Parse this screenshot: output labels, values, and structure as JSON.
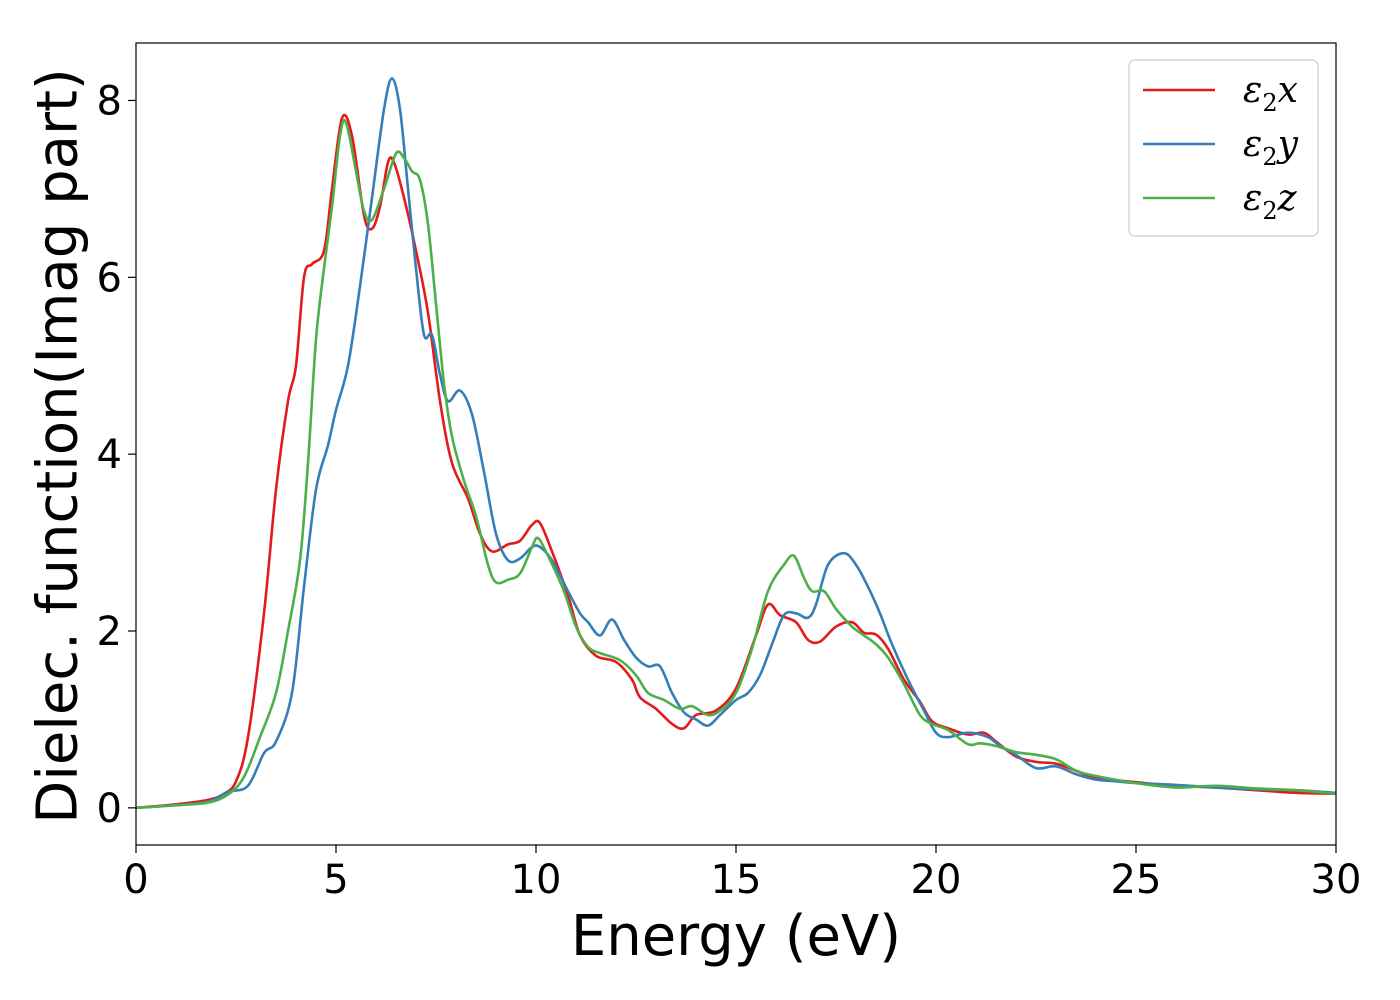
{
  "chart_data": {
    "type": "line",
    "xlabel": "Energy (eV)",
    "ylabel": "Dielec. function(Imag part)",
    "xlim": [
      0,
      30
    ],
    "ylim": [
      -0.42,
      8.65
    ],
    "xticks": [
      "0",
      "5",
      "10",
      "15",
      "20",
      "25",
      "30"
    ],
    "yticks": [
      "0",
      "2",
      "4",
      "6",
      "8"
    ],
    "grid": false,
    "legend_position": "top-right",
    "series": [
      {
        "name": "ε₂x",
        "legend_base": "ε",
        "legend_sub": "2",
        "legend_tail": "x",
        "color": "#e41a1c",
        "points": [
          [
            0,
            0
          ],
          [
            1,
            0.04
          ],
          [
            1.8,
            0.09
          ],
          [
            2.2,
            0.16
          ],
          [
            2.5,
            0.3
          ],
          [
            2.8,
            0.8
          ],
          [
            3.2,
            2.2
          ],
          [
            3.5,
            3.6
          ],
          [
            3.8,
            4.6
          ],
          [
            4.0,
            5.0
          ],
          [
            4.2,
            6.0
          ],
          [
            4.4,
            6.15
          ],
          [
            4.7,
            6.3
          ],
          [
            4.9,
            7.0
          ],
          [
            5.15,
            7.8
          ],
          [
            5.4,
            7.6
          ],
          [
            5.7,
            6.7
          ],
          [
            5.9,
            6.55
          ],
          [
            6.1,
            6.8
          ],
          [
            6.3,
            7.3
          ],
          [
            6.45,
            7.3
          ],
          [
            6.7,
            6.9
          ],
          [
            7.0,
            6.3
          ],
          [
            7.3,
            5.6
          ],
          [
            7.6,
            4.6
          ],
          [
            7.9,
            3.9
          ],
          [
            8.3,
            3.5
          ],
          [
            8.6,
            3.1
          ],
          [
            8.9,
            2.9
          ],
          [
            9.3,
            2.98
          ],
          [
            9.6,
            3.02
          ],
          [
            9.9,
            3.2
          ],
          [
            10.1,
            3.22
          ],
          [
            10.4,
            2.9
          ],
          [
            10.8,
            2.4
          ],
          [
            11.1,
            1.95
          ],
          [
            11.5,
            1.72
          ],
          [
            12.0,
            1.65
          ],
          [
            12.4,
            1.45
          ],
          [
            12.6,
            1.25
          ],
          [
            13.0,
            1.12
          ],
          [
            13.4,
            0.95
          ],
          [
            13.7,
            0.9
          ],
          [
            14.0,
            1.05
          ],
          [
            14.5,
            1.1
          ],
          [
            15.0,
            1.35
          ],
          [
            15.5,
            1.95
          ],
          [
            15.8,
            2.3
          ],
          [
            16.1,
            2.18
          ],
          [
            16.5,
            2.1
          ],
          [
            16.8,
            1.9
          ],
          [
            17.1,
            1.88
          ],
          [
            17.5,
            2.05
          ],
          [
            17.9,
            2.1
          ],
          [
            18.2,
            1.98
          ],
          [
            18.5,
            1.96
          ],
          [
            18.8,
            1.8
          ],
          [
            19.2,
            1.45
          ],
          [
            19.6,
            1.2
          ],
          [
            19.9,
            0.98
          ],
          [
            20.3,
            0.9
          ],
          [
            20.8,
            0.83
          ],
          [
            21.2,
            0.85
          ],
          [
            21.5,
            0.75
          ],
          [
            22.0,
            0.58
          ],
          [
            22.5,
            0.52
          ],
          [
            23.0,
            0.5
          ],
          [
            23.5,
            0.42
          ],
          [
            24.0,
            0.34
          ],
          [
            25.0,
            0.29
          ],
          [
            26.0,
            0.25
          ],
          [
            27.0,
            0.23
          ],
          [
            28.0,
            0.2
          ],
          [
            29.0,
            0.17
          ],
          [
            30.0,
            0.16
          ]
        ]
      },
      {
        "name": "ε₂y",
        "legend_base": "ε",
        "legend_sub": "2",
        "legend_tail": "y",
        "color": "#377eb8",
        "points": [
          [
            0,
            0
          ],
          [
            1,
            0.03
          ],
          [
            1.8,
            0.07
          ],
          [
            2.3,
            0.18
          ],
          [
            2.8,
            0.25
          ],
          [
            3.2,
            0.62
          ],
          [
            3.5,
            0.75
          ],
          [
            3.9,
            1.3
          ],
          [
            4.2,
            2.5
          ],
          [
            4.5,
            3.6
          ],
          [
            4.8,
            4.1
          ],
          [
            5.0,
            4.5
          ],
          [
            5.3,
            5.0
          ],
          [
            5.6,
            5.9
          ],
          [
            5.9,
            6.9
          ],
          [
            6.2,
            7.9
          ],
          [
            6.4,
            8.25
          ],
          [
            6.6,
            7.9
          ],
          [
            6.8,
            7.0
          ],
          [
            7.0,
            6.1
          ],
          [
            7.2,
            5.35
          ],
          [
            7.4,
            5.35
          ],
          [
            7.6,
            4.9
          ],
          [
            7.8,
            4.6
          ],
          [
            8.1,
            4.72
          ],
          [
            8.4,
            4.45
          ],
          [
            8.7,
            3.8
          ],
          [
            9.0,
            3.1
          ],
          [
            9.3,
            2.8
          ],
          [
            9.6,
            2.82
          ],
          [
            9.9,
            2.95
          ],
          [
            10.1,
            2.95
          ],
          [
            10.4,
            2.8
          ],
          [
            10.8,
            2.45
          ],
          [
            11.1,
            2.2
          ],
          [
            11.3,
            2.1
          ],
          [
            11.6,
            1.95
          ],
          [
            11.9,
            2.13
          ],
          [
            12.2,
            1.9
          ],
          [
            12.5,
            1.7
          ],
          [
            12.8,
            1.6
          ],
          [
            13.1,
            1.6
          ],
          [
            13.4,
            1.3
          ],
          [
            13.7,
            1.08
          ],
          [
            14.0,
            1.0
          ],
          [
            14.3,
            0.93
          ],
          [
            14.6,
            1.05
          ],
          [
            15.0,
            1.22
          ],
          [
            15.3,
            1.3
          ],
          [
            15.6,
            1.5
          ],
          [
            15.9,
            1.85
          ],
          [
            16.2,
            2.18
          ],
          [
            16.5,
            2.2
          ],
          [
            16.8,
            2.15
          ],
          [
            17.0,
            2.3
          ],
          [
            17.3,
            2.75
          ],
          [
            17.7,
            2.88
          ],
          [
            18.0,
            2.75
          ],
          [
            18.3,
            2.5
          ],
          [
            18.6,
            2.2
          ],
          [
            18.9,
            1.85
          ],
          [
            19.3,
            1.45
          ],
          [
            19.7,
            1.1
          ],
          [
            20.0,
            0.85
          ],
          [
            20.3,
            0.8
          ],
          [
            20.8,
            0.85
          ],
          [
            21.3,
            0.8
          ],
          [
            21.6,
            0.7
          ],
          [
            22.0,
            0.6
          ],
          [
            22.5,
            0.45
          ],
          [
            23.0,
            0.47
          ],
          [
            23.5,
            0.38
          ],
          [
            24.0,
            0.32
          ],
          [
            24.5,
            0.3
          ],
          [
            25.0,
            0.28
          ],
          [
            26.0,
            0.26
          ],
          [
            27.0,
            0.23
          ],
          [
            28.0,
            0.21
          ],
          [
            29.0,
            0.2
          ],
          [
            30.0,
            0.17
          ]
        ]
      },
      {
        "name": "ε₂z",
        "legend_base": "ε",
        "legend_sub": "2",
        "legend_tail": "z",
        "color": "#4daf4a",
        "points": [
          [
            0,
            0
          ],
          [
            1,
            0.03
          ],
          [
            1.8,
            0.06
          ],
          [
            2.3,
            0.15
          ],
          [
            2.7,
            0.35
          ],
          [
            3.1,
            0.8
          ],
          [
            3.5,
            1.3
          ],
          [
            3.8,
            2.0
          ],
          [
            4.1,
            2.8
          ],
          [
            4.3,
            3.9
          ],
          [
            4.5,
            5.3
          ],
          [
            4.7,
            6.1
          ],
          [
            4.9,
            6.8
          ],
          [
            5.1,
            7.6
          ],
          [
            5.25,
            7.75
          ],
          [
            5.5,
            7.2
          ],
          [
            5.7,
            6.75
          ],
          [
            5.9,
            6.65
          ],
          [
            6.2,
            7.0
          ],
          [
            6.5,
            7.4
          ],
          [
            6.7,
            7.35
          ],
          [
            6.9,
            7.2
          ],
          [
            7.1,
            7.1
          ],
          [
            7.3,
            6.6
          ],
          [
            7.5,
            5.7
          ],
          [
            7.7,
            4.8
          ],
          [
            7.9,
            4.2
          ],
          [
            8.2,
            3.7
          ],
          [
            8.5,
            3.3
          ],
          [
            8.8,
            2.75
          ],
          [
            9.0,
            2.55
          ],
          [
            9.3,
            2.58
          ],
          [
            9.6,
            2.65
          ],
          [
            9.9,
            2.95
          ],
          [
            10.05,
            3.05
          ],
          [
            10.3,
            2.85
          ],
          [
            10.7,
            2.45
          ],
          [
            11.0,
            2.05
          ],
          [
            11.3,
            1.82
          ],
          [
            11.6,
            1.75
          ],
          [
            12.1,
            1.67
          ],
          [
            12.5,
            1.5
          ],
          [
            12.8,
            1.3
          ],
          [
            13.2,
            1.22
          ],
          [
            13.6,
            1.12
          ],
          [
            13.9,
            1.15
          ],
          [
            14.3,
            1.05
          ],
          [
            14.6,
            1.1
          ],
          [
            15.0,
            1.3
          ],
          [
            15.4,
            1.8
          ],
          [
            15.8,
            2.45
          ],
          [
            16.2,
            2.75
          ],
          [
            16.45,
            2.85
          ],
          [
            16.7,
            2.6
          ],
          [
            16.9,
            2.45
          ],
          [
            17.2,
            2.45
          ],
          [
            17.5,
            2.25
          ],
          [
            17.9,
            2.05
          ],
          [
            18.2,
            1.95
          ],
          [
            18.5,
            1.85
          ],
          [
            18.8,
            1.7
          ],
          [
            19.2,
            1.4
          ],
          [
            19.6,
            1.05
          ],
          [
            19.9,
            0.95
          ],
          [
            20.3,
            0.88
          ],
          [
            20.8,
            0.72
          ],
          [
            21.1,
            0.73
          ],
          [
            21.5,
            0.7
          ],
          [
            22.0,
            0.63
          ],
          [
            22.5,
            0.6
          ],
          [
            23.0,
            0.55
          ],
          [
            23.5,
            0.42
          ],
          [
            24.0,
            0.36
          ],
          [
            25.0,
            0.28
          ],
          [
            26.0,
            0.23
          ],
          [
            27.0,
            0.25
          ],
          [
            28.0,
            0.22
          ],
          [
            29.0,
            0.2
          ],
          [
            30.0,
            0.16
          ]
        ]
      }
    ]
  }
}
